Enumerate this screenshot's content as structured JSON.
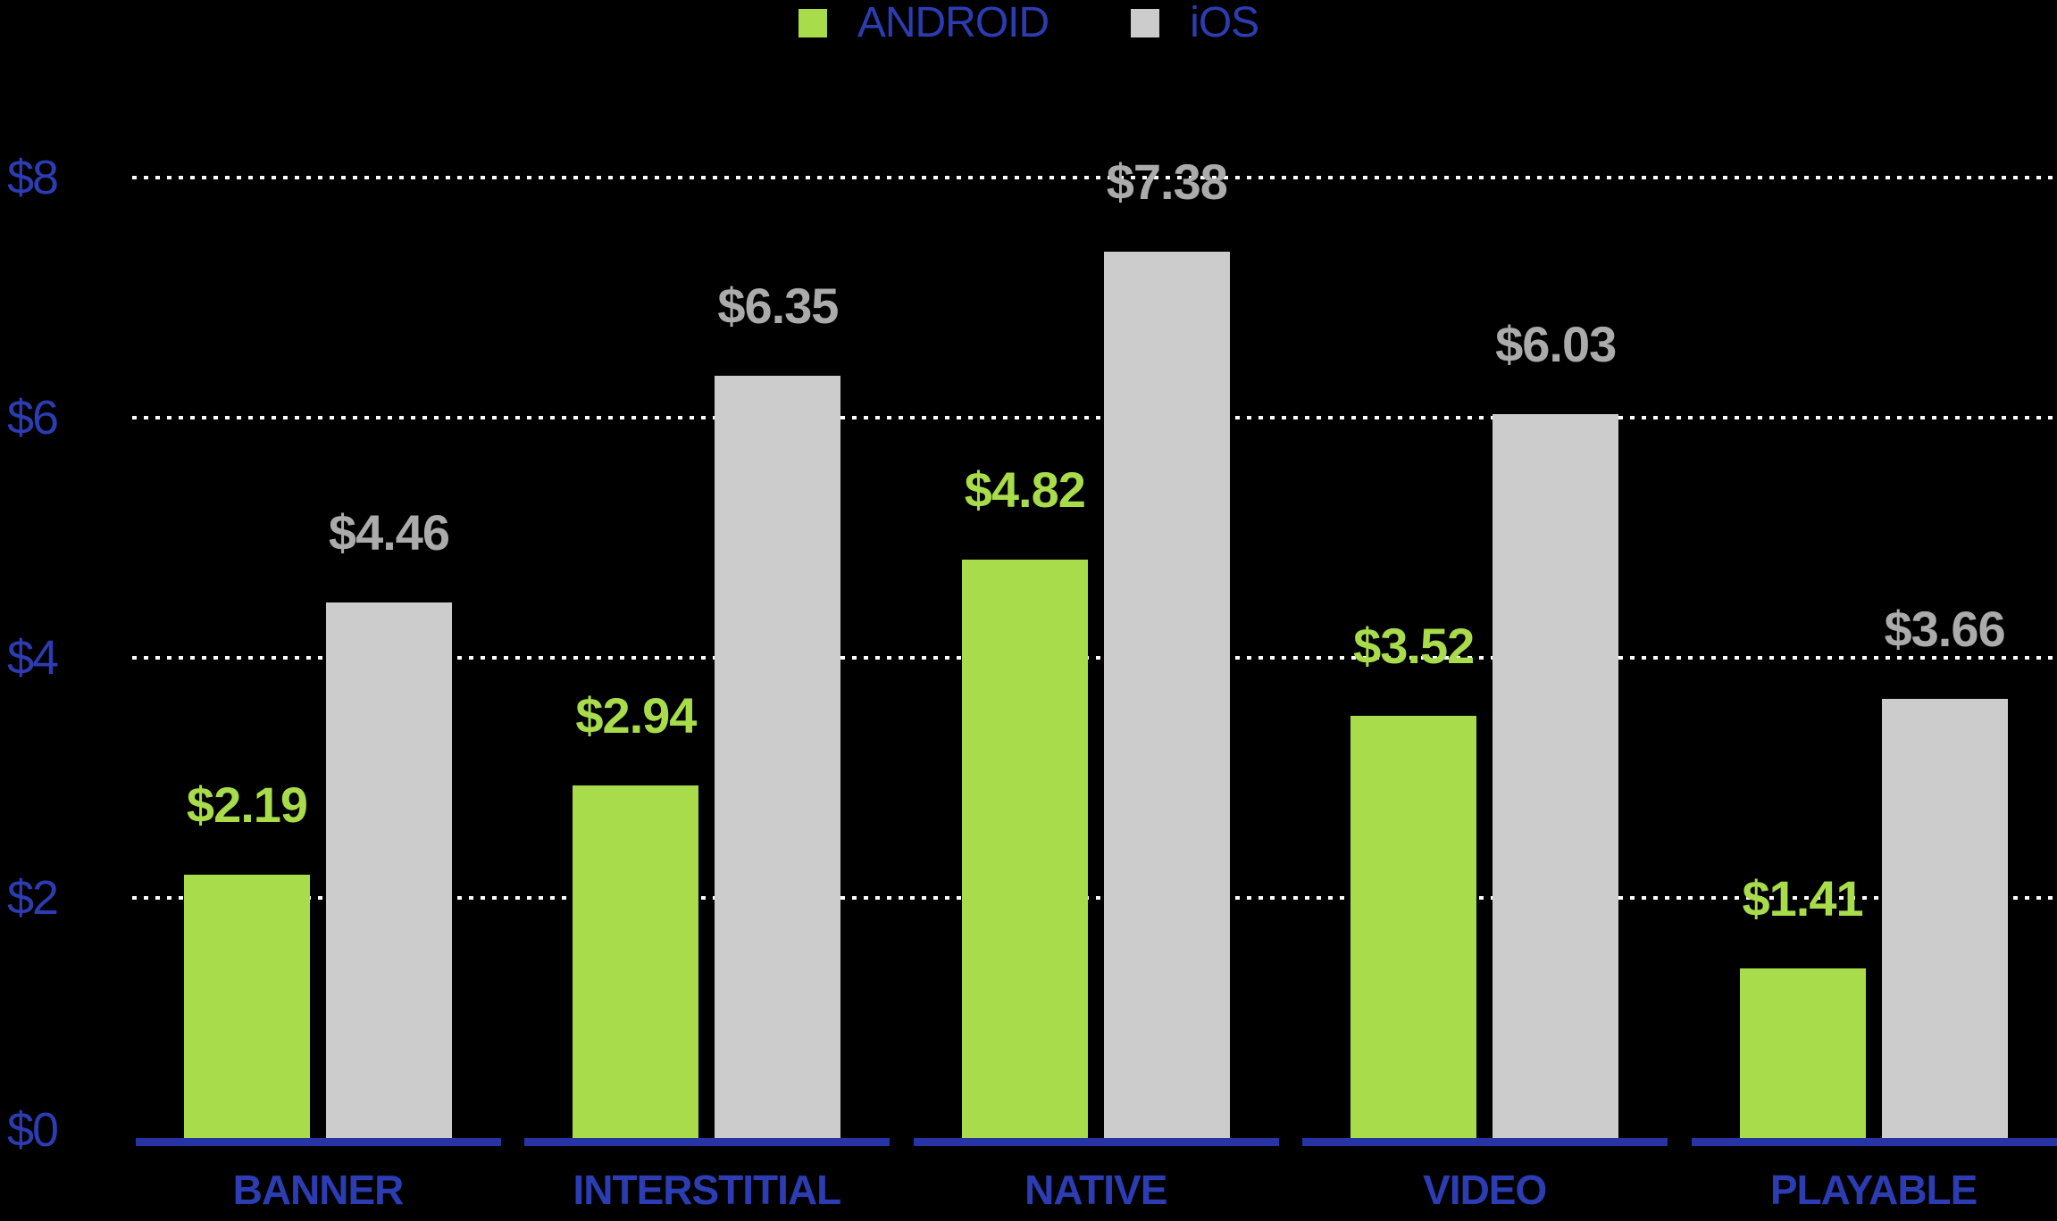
{
  "background_color": "#000000",
  "legend": {
    "position": "top-center",
    "items": [
      {
        "label": "ANDROID",
        "color": "#a9dc4b"
      },
      {
        "label": "iOS",
        "color": "#cccccc"
      }
    ]
  },
  "chart_data": {
    "type": "bar",
    "title": "",
    "xlabel": "",
    "ylabel": "",
    "categories": [
      "BANNER",
      "INTERSTITIAL",
      "NATIVE",
      "VIDEO",
      "PLAYABLE"
    ],
    "series": [
      {
        "name": "ANDROID",
        "color": "#a9dc4b",
        "label_color": "#a9dc4b",
        "values": [
          2.19,
          2.94,
          4.82,
          3.52,
          1.41
        ],
        "value_labels": [
          "$2.19",
          "$2.94",
          "$4.82",
          "$3.52",
          "$1.41"
        ]
      },
      {
        "name": "iOS",
        "color": "#cccccc",
        "label_color": "#ababab",
        "values": [
          4.46,
          6.35,
          7.38,
          6.03,
          3.66
        ],
        "value_labels": [
          "$4.46",
          "$6.35",
          "$7.38",
          "$6.03",
          "$3.66"
        ]
      }
    ],
    "yticks": [
      {
        "label": "$0",
        "value": 0
      },
      {
        "label": "$2",
        "value": 2
      },
      {
        "label": "$4",
        "value": 4
      },
      {
        "label": "$6",
        "value": 6
      },
      {
        "label": "$8",
        "value": 8
      }
    ],
    "ylim": [
      0,
      8
    ],
    "grid": "horizontal-dotted-white-behind-bars",
    "legend_position": "top-center",
    "axis_text_color": "#2c3cb2",
    "baseline_color": "#2634a6",
    "gridline_color": "#ffffff"
  }
}
